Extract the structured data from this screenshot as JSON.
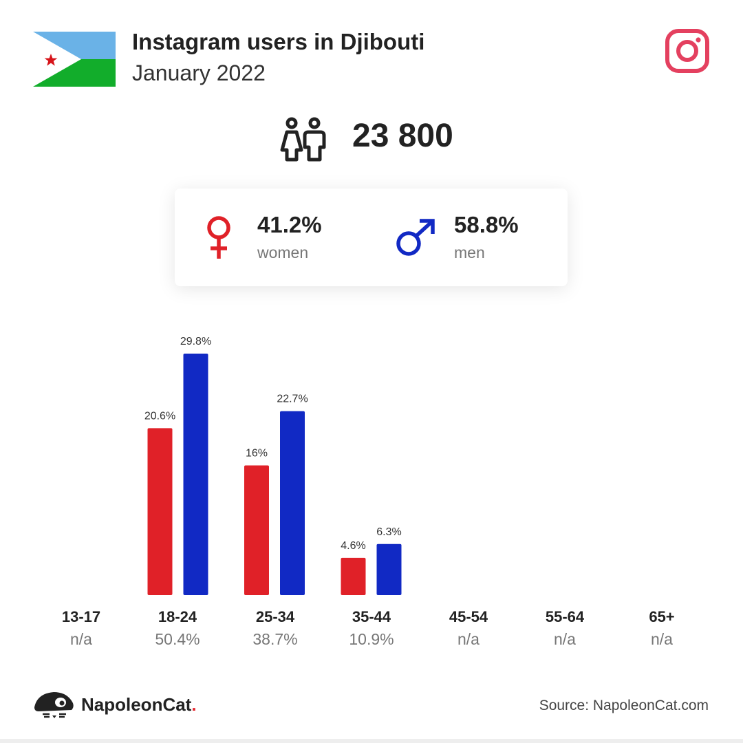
{
  "header": {
    "title": "Instagram users in Djibouti",
    "subtitle": "January 2022",
    "flag_icon": "djibouti-flag",
    "platform_icon": "instagram-icon"
  },
  "total": {
    "icon": "people-icon",
    "value": "23 800"
  },
  "gender": {
    "women": {
      "pct": "41.2%",
      "label": "women",
      "icon": "female-icon"
    },
    "men": {
      "pct": "58.8%",
      "label": "men",
      "icon": "male-icon"
    }
  },
  "colors": {
    "women": "#e02128",
    "men": "#1129c4",
    "flag_blue": "#6ab2e7",
    "flag_green": "#12ad2b",
    "flag_star": "#d7141a",
    "instagram": "#e4405f"
  },
  "chart_data": {
    "type": "bar",
    "categories": [
      "13-17",
      "18-24",
      "25-34",
      "35-44",
      "45-54",
      "55-64",
      "65+"
    ],
    "group_totals": [
      "n/a",
      "50.4%",
      "38.7%",
      "10.9%",
      "n/a",
      "n/a",
      "n/a"
    ],
    "series": [
      {
        "key": "women",
        "values": [
          null,
          20.6,
          16,
          4.6,
          null,
          null,
          null
        ],
        "labels": [
          "",
          "20.6%",
          "16%",
          "4.6%",
          "",
          "",
          ""
        ]
      },
      {
        "key": "men",
        "values": [
          null,
          29.8,
          22.7,
          6.3,
          null,
          null,
          null
        ],
        "labels": [
          "",
          "29.8%",
          "22.7%",
          "6.3%",
          "",
          "",
          ""
        ]
      }
    ],
    "ylim": [
      0,
      29.8
    ],
    "grid": false
  },
  "footer": {
    "brand": "NapoleonCat",
    "brand_dot": ".",
    "logo_icon": "napoleoncat-logo",
    "source": "Source: NapoleonCat.com"
  }
}
